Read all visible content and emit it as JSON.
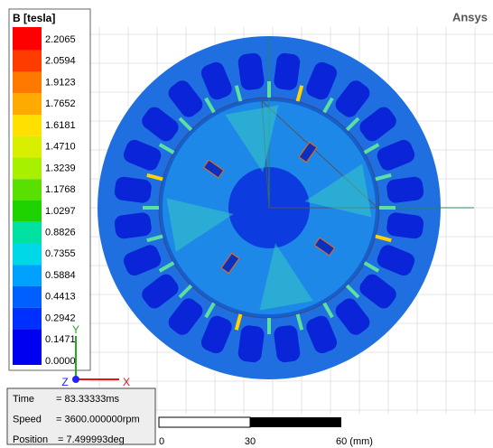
{
  "header": {
    "brand": "Ansys"
  },
  "legend": {
    "title": "B [tesla]",
    "labels": [
      "2.2065",
      "2.0594",
      "1.9123",
      "1.7652",
      "1.6181",
      "1.4710",
      "1.3239",
      "1.1768",
      "1.0297",
      "0.8826",
      "0.7355",
      "0.5884",
      "0.4413",
      "0.2942",
      "0.1471",
      "0.0000"
    ],
    "colors": [
      "#ff0000",
      "#ff3c00",
      "#ff7800",
      "#ffaa00",
      "#ffe000",
      "#d8f000",
      "#a6f000",
      "#5ae000",
      "#1ed200",
      "#00e0a0",
      "#00d8e8",
      "#00a0ff",
      "#0060ff",
      "#0030ff",
      "#0000f0"
    ]
  },
  "info": {
    "rows": [
      {
        "label": "Time",
        "value": "= 83.33333ms"
      },
      {
        "label": "Speed",
        "value": "= 3600.000000rpm"
      },
      {
        "label": "Position",
        "value": "= 7.499993deg"
      }
    ]
  },
  "scale_bar": {
    "labels": [
      "0",
      "30",
      "60 (mm)"
    ]
  },
  "axes": {
    "labels": [
      "Y",
      "Z",
      "X"
    ]
  }
}
